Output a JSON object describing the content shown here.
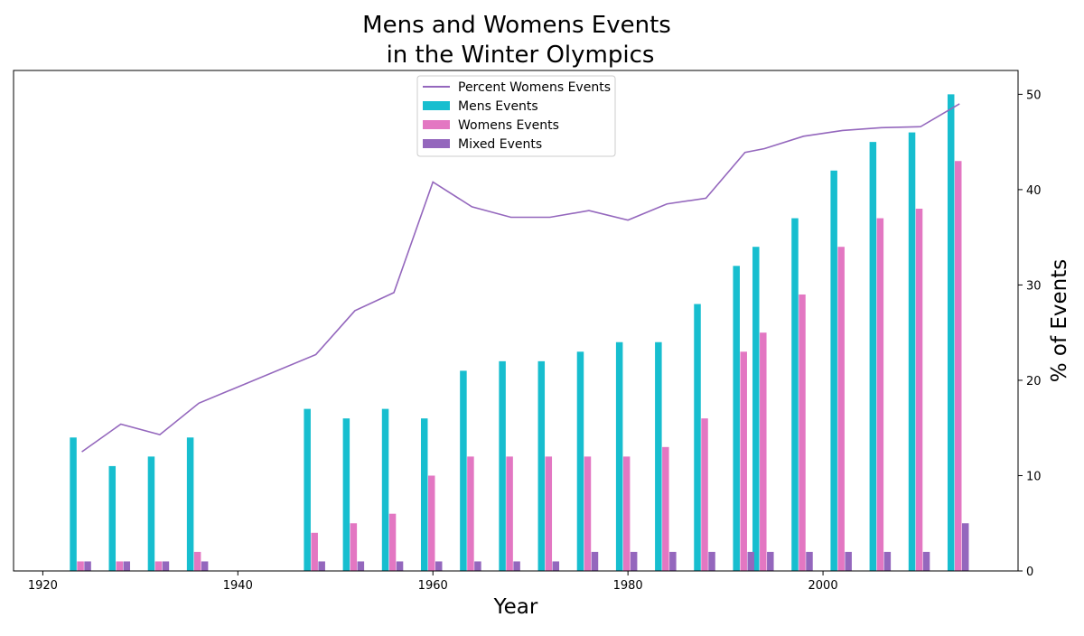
{
  "chart_data": {
    "type": "bar",
    "title_line1": "Mens and Womens Events",
    "title_line2": "in the Winter Olympics",
    "xlabel": "Year",
    "ylabel_right": "% of Events",
    "xlim": [
      1917,
      2020
    ],
    "ylim": [
      0,
      52.5
    ],
    "x_ticks": [
      "1920",
      "1940",
      "1960",
      "1980",
      "2000"
    ],
    "y_ticks": [
      "0",
      "10",
      "20",
      "30",
      "40",
      "50"
    ],
    "legend_position": "top-center",
    "years": [
      1924,
      1928,
      1932,
      1936,
      1948,
      1952,
      1956,
      1960,
      1964,
      1968,
      1972,
      1976,
      1980,
      1984,
      1988,
      1992,
      1994,
      1998,
      2002,
      2006,
      2010,
      2014
    ],
    "series": [
      {
        "name": "Mens Events",
        "color": "#17becf",
        "values": [
          14,
          11,
          12,
          14,
          17,
          16,
          17,
          16,
          21,
          22,
          22,
          23,
          24,
          24,
          28,
          32,
          34,
          37,
          42,
          45,
          46,
          50
        ]
      },
      {
        "name": "Womens Events",
        "color": "#e377c2",
        "values": [
          1,
          1,
          1,
          2,
          4,
          5,
          6,
          10,
          12,
          12,
          12,
          12,
          12,
          13,
          16,
          23,
          25,
          29,
          34,
          37,
          38,
          43
        ]
      },
      {
        "name": "Mixed Events",
        "color": "#9467bd",
        "values": [
          1,
          1,
          1,
          1,
          1,
          1,
          1,
          1,
          1,
          1,
          1,
          2,
          2,
          2,
          2,
          2,
          2,
          2,
          2,
          2,
          2,
          5
        ]
      }
    ],
    "line_series": {
      "name": "Percent Womens Events",
      "color": "#9467bd",
      "x": [
        1924,
        1928,
        1932,
        1936,
        1948,
        1952,
        1956,
        1960,
        1964,
        1968,
        1972,
        1976,
        1980,
        1984,
        1988,
        1992,
        1994,
        1998,
        2002,
        2006,
        2010,
        2014
      ],
      "values": [
        12.5,
        15.4,
        14.3,
        17.6,
        22.7,
        27.3,
        29.2,
        40.8,
        38.2,
        37.1,
        37.1,
        37.8,
        36.8,
        38.5,
        39.1,
        43.9,
        44.3,
        45.6,
        46.2,
        46.5,
        46.6,
        49.0
      ]
    }
  }
}
